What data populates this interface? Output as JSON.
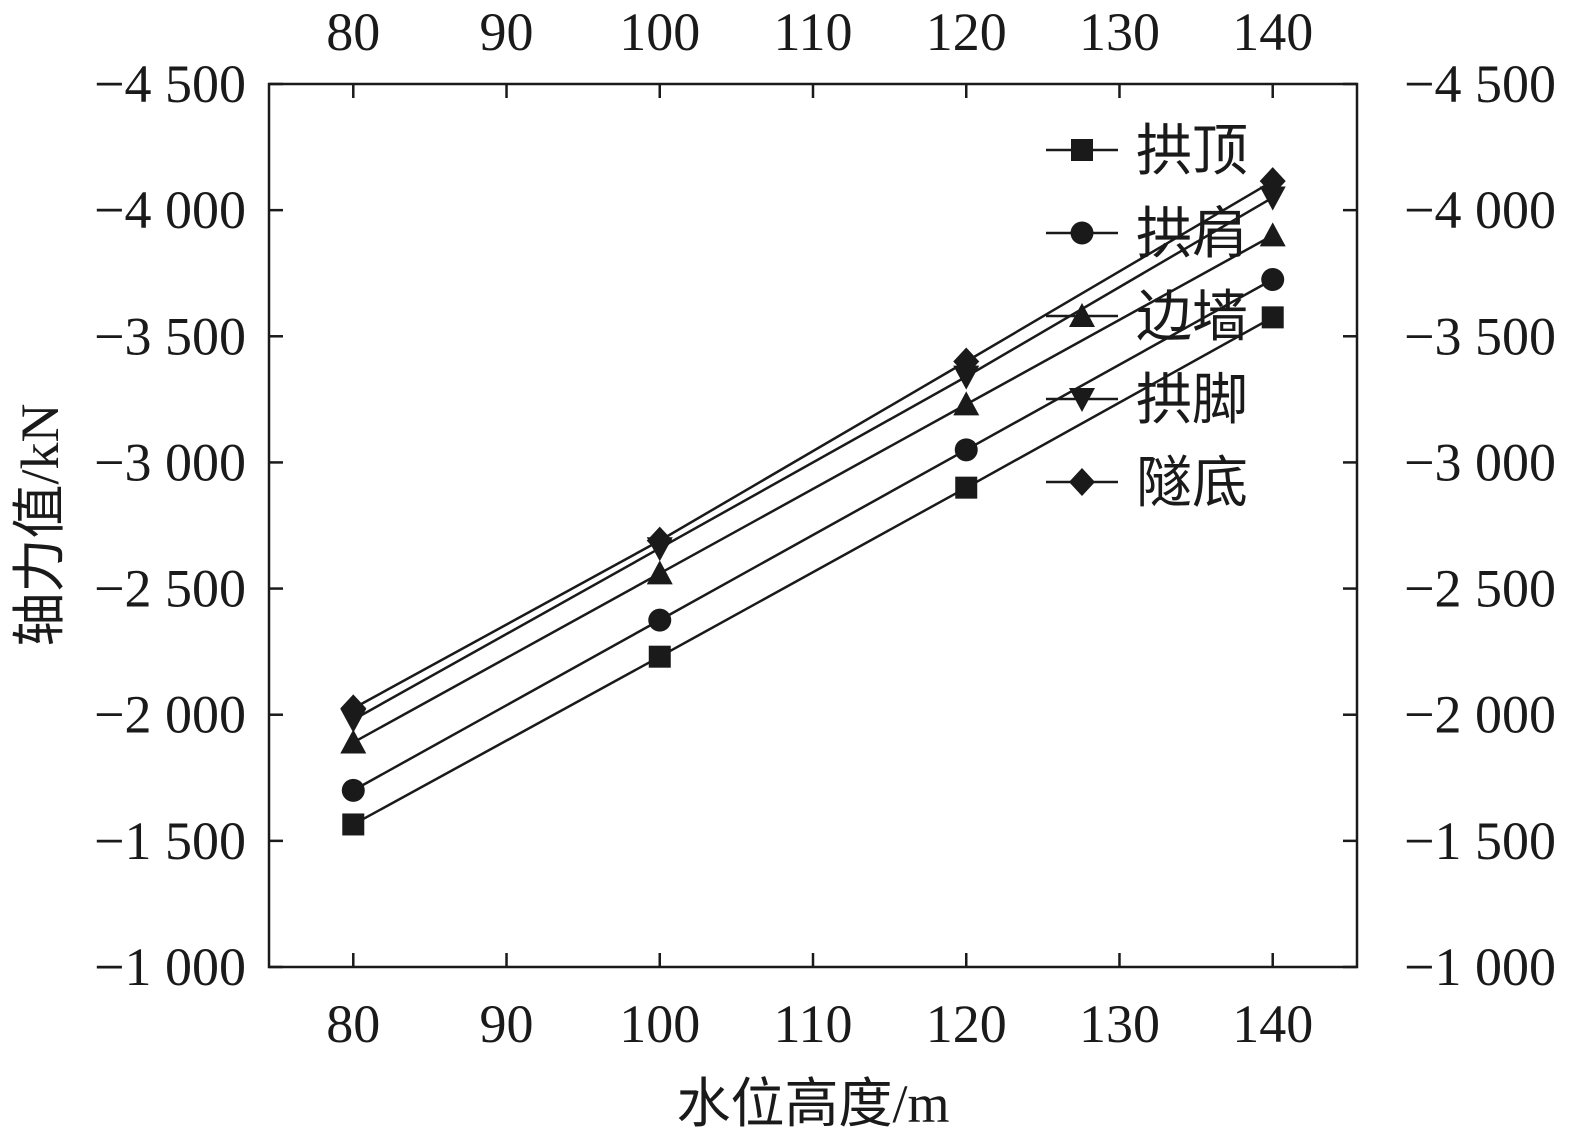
{
  "chart_data": {
    "type": "line",
    "title": "",
    "xlabel": "水位高度/m",
    "ylabel": "轴力值/kN",
    "x": [
      80,
      100,
      120,
      140
    ],
    "xlim": [
      74.5,
      145.5
    ],
    "ylim": [
      -4500,
      -1000
    ],
    "x_ticks": [
      80,
      90,
      100,
      110,
      120,
      130,
      140
    ],
    "x_tick_labels": [
      "80",
      "90",
      "100",
      "110",
      "120",
      "130",
      "140"
    ],
    "y_ticks": [
      -1000,
      -1500,
      -2000,
      -2500,
      -3000,
      -3500,
      -4000,
      -4500
    ],
    "y_tick_labels": [
      "−1 000",
      "−1 500",
      "−2 000",
      "−2 500",
      "−3 000",
      "−3 500",
      "−4 000",
      "−4 500"
    ],
    "grid": false,
    "legend_position": "top-right",
    "series": [
      {
        "name": "拱顶",
        "marker": "square",
        "values": [
          -1565,
          -2230,
          -2900,
          -3575
        ]
      },
      {
        "name": "拱肩",
        "marker": "circle",
        "values": [
          -1700,
          -2375,
          -3050,
          -3725
        ]
      },
      {
        "name": "边墙",
        "marker": "triangle-up",
        "values": [
          -1890,
          -2560,
          -3230,
          -3900
        ]
      },
      {
        "name": "拱脚",
        "marker": "triangle-down",
        "values": [
          -1980,
          -2660,
          -3340,
          -4050
        ]
      },
      {
        "name": "隧底",
        "marker": "diamond",
        "values": [
          -2025,
          -2690,
          -3400,
          -4115
        ]
      }
    ],
    "colors": {
      "line": "#1a1a1a",
      "marker": "#1a1a1a",
      "background": "#ffffff"
    }
  }
}
